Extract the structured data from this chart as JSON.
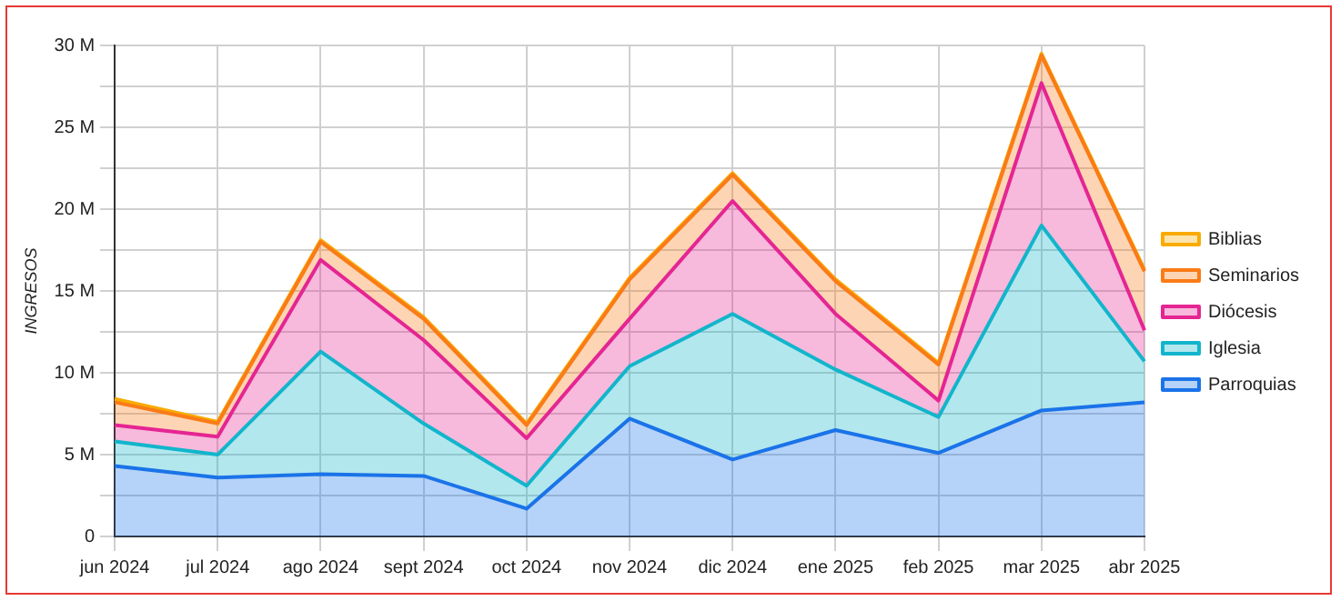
{
  "chart_data": {
    "type": "area",
    "stacked": true,
    "ylabel": "INGRESOS",
    "categories": [
      "jun 2024",
      "jul 2024",
      "ago 2024",
      "sept 2024",
      "oct 2024",
      "nov 2024",
      "dic 2024",
      "ene 2025",
      "feb 2025",
      "mar 2025",
      "abr 2025"
    ],
    "series": [
      {
        "name": "Parroquias",
        "color": "#1a73e8",
        "values": [
          4.3,
          3.6,
          3.8,
          3.7,
          1.7,
          7.2,
          4.7,
          6.5,
          5.1,
          7.7,
          8.2
        ]
      },
      {
        "name": "Iglesia",
        "color": "#12b5cb",
        "values": [
          1.5,
          1.4,
          7.5,
          3.2,
          1.4,
          3.2,
          8.9,
          3.7,
          2.2,
          11.3,
          2.5
        ]
      },
      {
        "name": "Diócesis",
        "color": "#e52592",
        "values": [
          1.0,
          1.1,
          5.6,
          5.1,
          2.9,
          2.9,
          6.9,
          3.4,
          1.0,
          8.7,
          1.9
        ]
      },
      {
        "name": "Seminarios",
        "color": "#fa7b17",
        "values": [
          1.4,
          0.8,
          1.1,
          1.3,
          0.8,
          2.4,
          1.6,
          2.0,
          2.2,
          1.7,
          3.6
        ]
      },
      {
        "name": "Biblias",
        "color": "#f9ab00",
        "values": [
          0.2,
          0.1,
          0.1,
          0.1,
          0.1,
          0.1,
          0.1,
          0.1,
          0.1,
          0.1,
          0.1
        ]
      }
    ],
    "ylim": [
      0,
      30
    ],
    "yticks": [
      0,
      {
        "value": 2.5,
        "label": null
      },
      {
        "value": 5,
        "label": "5 M"
      },
      {
        "value": 7.5,
        "label": null
      },
      {
        "value": 10,
        "label": "10 M"
      },
      {
        "value": 12.5,
        "label": null
      },
      {
        "value": 15,
        "label": "15 M"
      },
      {
        "value": 17.5,
        "label": null
      },
      {
        "value": 20,
        "label": "20 M"
      },
      {
        "value": 22.5,
        "label": null
      },
      {
        "value": 25,
        "label": "25 M"
      },
      {
        "value": 27.5,
        "label": null
      },
      {
        "value": 30,
        "label": "30 M"
      }
    ],
    "grid": true,
    "legend": "right",
    "marker": "none"
  }
}
